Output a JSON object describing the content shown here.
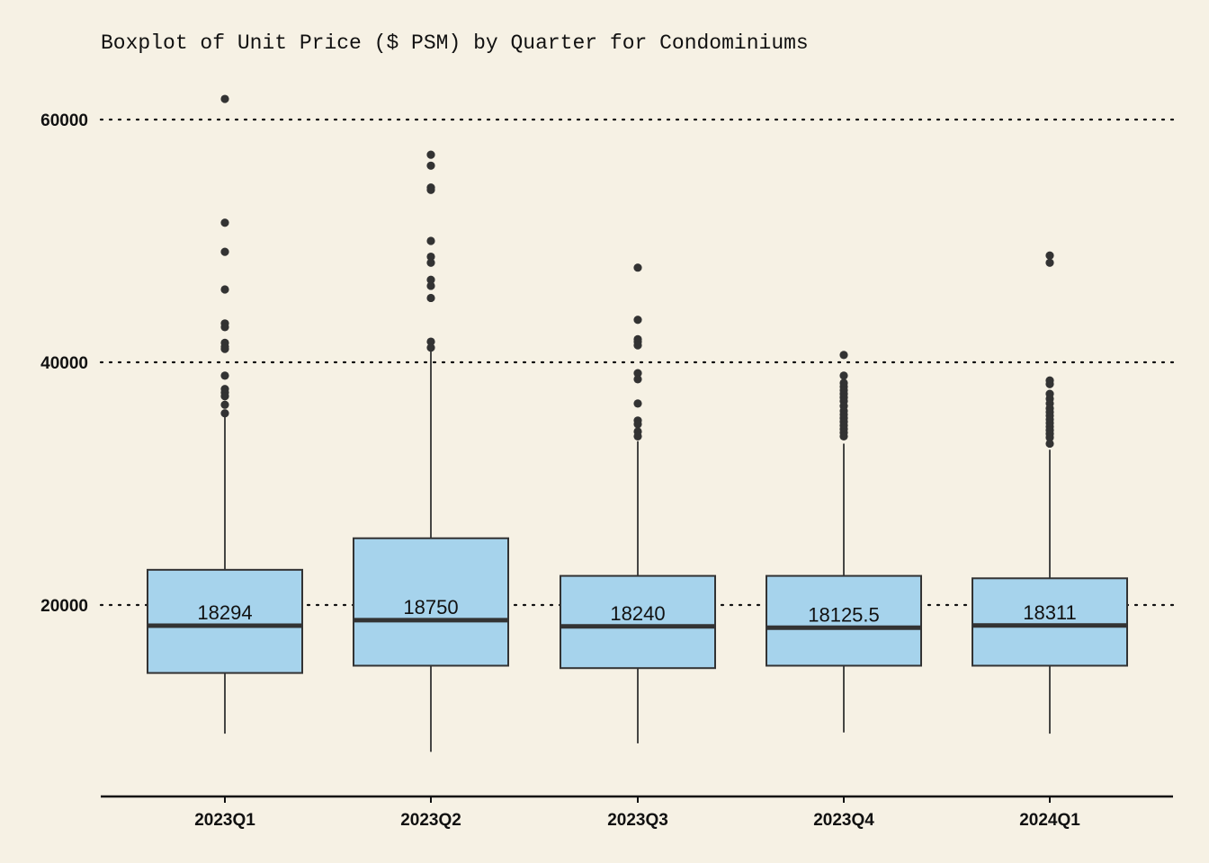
{
  "chart_data": {
    "type": "boxplot",
    "title": "Boxplot of Unit Price ($ PSM) by Quarter for Condominiums",
    "xlabel": "",
    "ylabel": "",
    "ylim": [
      4000,
      63000
    ],
    "yticks": [
      20000,
      40000,
      60000
    ],
    "ytick_labels": [
      "20000",
      "40000",
      "60000"
    ],
    "grid": "horizontal dotted at major ticks",
    "box_fill": "#a6d3ec",
    "box_stroke": "#333333",
    "background": "#f6f1e4",
    "categories": [
      "2023Q1",
      "2023Q2",
      "2023Q3",
      "2023Q4",
      "2024Q1"
    ],
    "boxes": [
      {
        "category": "2023Q1",
        "whisker_low": 9400,
        "q1": 14400,
        "median": 18294,
        "q3": 22900,
        "whisker_high": 35500,
        "median_label": "18294",
        "outliers": [
          61700,
          51500,
          49100,
          46000,
          43200,
          42900,
          41600,
          41300,
          41100,
          38900,
          37800,
          37500,
          37200,
          36500,
          35800
        ]
      },
      {
        "category": "2023Q2",
        "whisker_low": 7900,
        "q1": 15000,
        "median": 18750,
        "q3": 25500,
        "whisker_high": 41000,
        "median_label": "18750",
        "outliers": [
          57100,
          56200,
          54400,
          54200,
          50000,
          48700,
          48200,
          46800,
          46300,
          45300,
          41700,
          41200
        ]
      },
      {
        "category": "2023Q3",
        "whisker_low": 8600,
        "q1": 14800,
        "median": 18240,
        "q3": 22400,
        "whisker_high": 33500,
        "median_label": "18240",
        "outliers": [
          47800,
          43500,
          41900,
          41700,
          41400,
          39100,
          38600,
          36600,
          35200,
          34900,
          34300,
          33900
        ]
      },
      {
        "category": "2023Q4",
        "whisker_low": 9500,
        "q1": 15000,
        "median": 18125.5,
        "q3": 22400,
        "whisker_high": 33300,
        "median_label": "18125.5",
        "outliers": [
          40600,
          38900,
          38300,
          38000,
          37700,
          37400,
          37100,
          36800,
          36400,
          36000,
          35700,
          35400,
          35100,
          34800,
          34500,
          34200,
          33900
        ]
      },
      {
        "category": "2024Q1",
        "whisker_low": 9400,
        "q1": 15000,
        "median": 18311,
        "q3": 22200,
        "whisker_high": 32800,
        "median_label": "18311",
        "outliers": [
          48800,
          48200,
          38500,
          38200,
          37400,
          37000,
          36600,
          36200,
          35900,
          35600,
          35300,
          35000,
          34700,
          34400,
          34100,
          33800,
          33300
        ]
      }
    ]
  }
}
